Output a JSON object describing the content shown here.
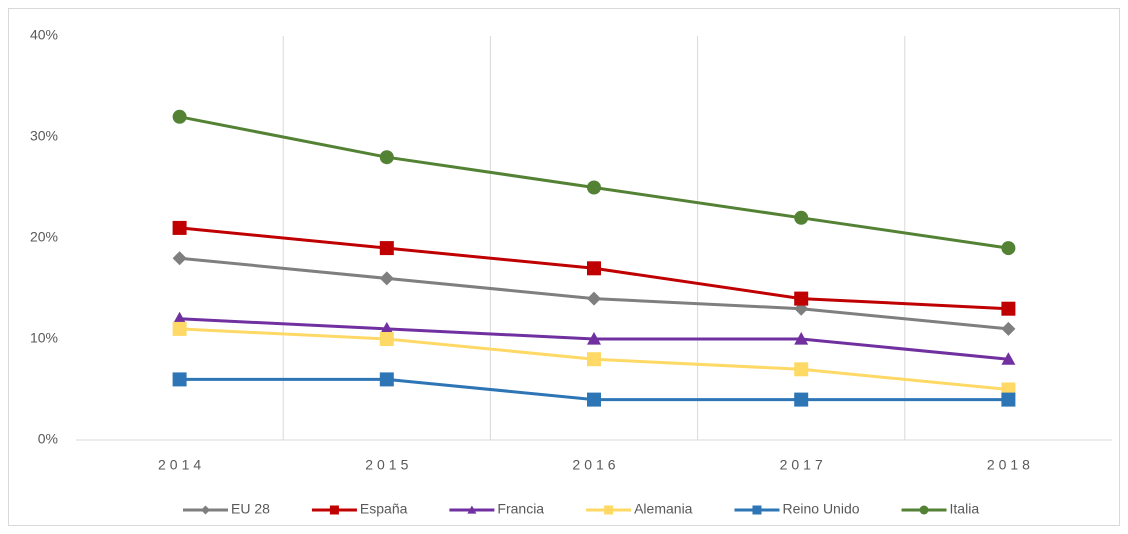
{
  "chart_data": {
    "type": "line",
    "categories": [
      "2014",
      "2015",
      "2016",
      "2017",
      "2018"
    ],
    "series": [
      {
        "name": "EU 28",
        "color": "#7f7f7f",
        "marker": "diamond",
        "values": [
          18,
          16,
          14,
          13,
          11
        ]
      },
      {
        "name": "España",
        "color": "#c00000",
        "marker": "square",
        "values": [
          21,
          19,
          17,
          14,
          13
        ]
      },
      {
        "name": "Francia",
        "color": "#7030a0",
        "marker": "triangle",
        "values": [
          12,
          11,
          10,
          10,
          8
        ]
      },
      {
        "name": "Alemania",
        "color": "#ffd966",
        "marker": "square",
        "values": [
          11,
          10,
          8,
          7,
          5
        ]
      },
      {
        "name": "Reino Unido",
        "color": "#2e75b6",
        "marker": "square",
        "values": [
          6,
          6,
          4,
          4,
          4
        ]
      },
      {
        "name": "Italia",
        "color": "#548235",
        "marker": "circle",
        "values": [
          32,
          28,
          25,
          22,
          19
        ]
      }
    ],
    "ylim": [
      0,
      40
    ],
    "yticks": [
      {
        "value": 0,
        "label": "0%"
      },
      {
        "value": 10,
        "label": "10%"
      },
      {
        "value": 20,
        "label": "20%"
      },
      {
        "value": 30,
        "label": "30%"
      },
      {
        "value": 40,
        "label": "40%"
      }
    ],
    "grid": "x",
    "legend": "bottom"
  }
}
